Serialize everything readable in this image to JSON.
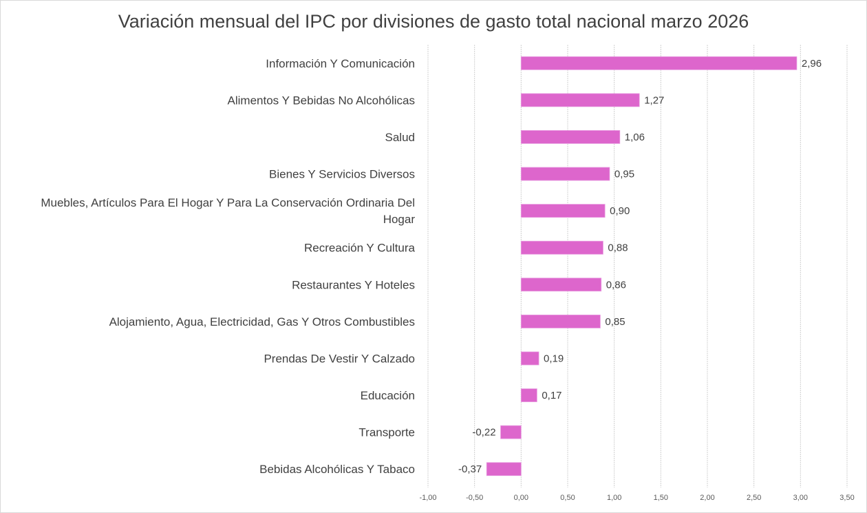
{
  "chart_data": {
    "type": "bar",
    "orientation": "horizontal",
    "title": "Variación mensual del IPC por divisiones de gasto total nacional marzo 2026",
    "xlabel": "",
    "ylabel": "",
    "xlim": [
      -1.0,
      3.5
    ],
    "xticks": [
      -1.0,
      -0.5,
      0.0,
      0.5,
      1.0,
      1.5,
      2.0,
      2.5,
      3.0,
      3.5
    ],
    "xtick_labels": [
      "-1,00",
      "-0,50",
      "0,00",
      "0,50",
      "1,00",
      "1,50",
      "2,00",
      "2,50",
      "3,00",
      "3,50"
    ],
    "grid": "vertical",
    "bar_color": "#dd66cc",
    "categories": [
      [
        "Información Y Comunicación"
      ],
      [
        "Alimentos Y Bebidas No Alcohólicas"
      ],
      [
        "Salud"
      ],
      [
        "Bienes Y Servicios Diversos"
      ],
      [
        "Muebles, Artículos Para El Hogar Y Para La Conservación Ordinaria Del",
        "Hogar"
      ],
      [
        "Recreación Y Cultura"
      ],
      [
        "Restaurantes Y Hoteles"
      ],
      [
        "Alojamiento, Agua, Electricidad, Gas Y Otros Combustibles"
      ],
      [
        "Prendas De Vestir Y Calzado"
      ],
      [
        "Educación"
      ],
      [
        "Transporte"
      ],
      [
        "Bebidas Alcohólicas Y Tabaco"
      ]
    ],
    "values": [
      2.96,
      1.27,
      1.06,
      0.95,
      0.9,
      0.88,
      0.86,
      0.85,
      0.19,
      0.17,
      -0.22,
      -0.37
    ],
    "value_labels": [
      "2,96",
      "1,27",
      "1,06",
      "0,95",
      "0,90",
      "0,88",
      "0,86",
      "0,85",
      "0,19",
      "0,17",
      "-0,22",
      "-0,37"
    ]
  }
}
